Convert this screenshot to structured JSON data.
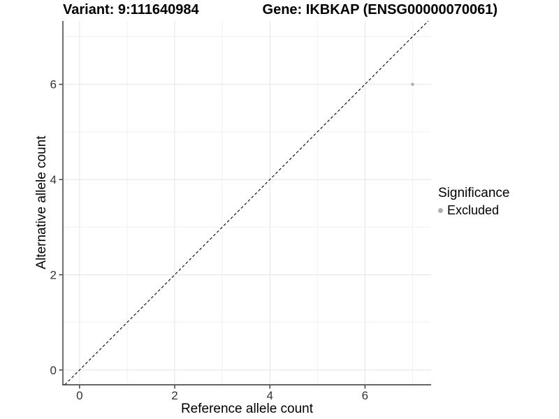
{
  "chart_data": {
    "type": "scatter",
    "title_left": "Variant: 9:111640984",
    "title_right": "Gene: IKBKAP (ENSG00000070061)",
    "xlabel": "Reference allele count",
    "ylabel": "Alternative allele count",
    "xlim": [
      -0.35,
      7.39
    ],
    "ylim": [
      -0.31,
      7.33
    ],
    "xticks": [
      0,
      2,
      4,
      6
    ],
    "yticks": [
      0,
      2,
      4,
      6
    ],
    "minor_xticks": [
      1,
      3,
      5,
      7
    ],
    "minor_yticks": [
      1,
      3,
      5,
      7
    ],
    "grid": true,
    "legend_position": "right",
    "points": [
      {
        "x": 7,
        "y": 6,
        "series": "Excluded"
      }
    ],
    "identity_line": {
      "style": "dashed",
      "slope": 1,
      "intercept": 0
    },
    "legend": {
      "title": "Significance",
      "items": [
        {
          "label": "Excluded",
          "color": "#b0b0b0"
        }
      ]
    }
  },
  "colors": {
    "background": "#ffffff",
    "grid_major": "#e4e4e4",
    "grid_minor": "#f1f1f1",
    "axis_line": "#333333",
    "tick_text": "#333333",
    "identity_line": "#000000",
    "point": "#b0b0b0"
  }
}
